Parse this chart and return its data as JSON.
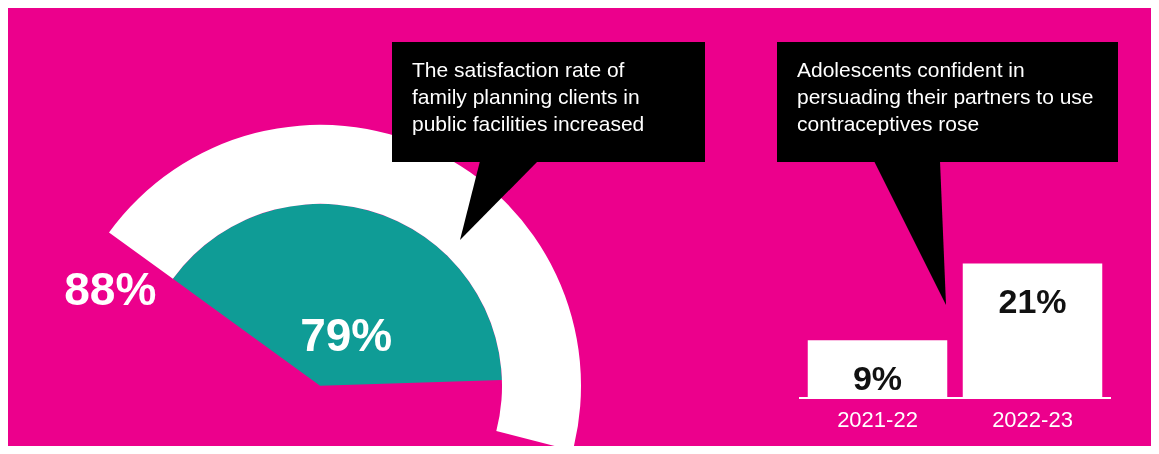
{
  "chart_data": [
    {
      "type": "other",
      "values": [
        88,
        79
      ],
      "colors": [
        "#ffffff",
        "#0f9c96"
      ],
      "value_labels": [
        "88%",
        "79%"
      ],
      "annotations": [
        "The satisfaction rate of family planning clients in public facilities increased"
      ]
    },
    {
      "type": "bar",
      "categories": [
        "2021-22",
        "2022-23"
      ],
      "values": [
        9,
        21
      ],
      "color": "#ffffff",
      "value_labels": [
        "9%",
        "21%"
      ],
      "tick_labels": "x",
      "grid": false,
      "legend": false,
      "annotations": [
        "Adolescents confident in persuading their partners to use contraceptives rose"
      ]
    }
  ]
}
